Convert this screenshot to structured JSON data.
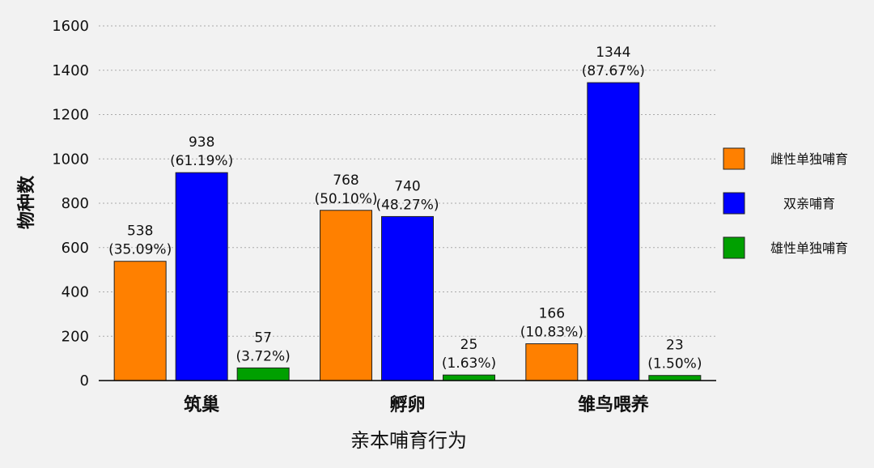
{
  "chart_data": {
    "type": "bar",
    "title": "",
    "xlabel": "亲本哺育行为",
    "ylabel": "物种数",
    "ylim": [
      0,
      1600
    ],
    "yticks": [
      0,
      200,
      400,
      600,
      800,
      1000,
      1200,
      1400,
      1600
    ],
    "grid": "horizontal-dotted",
    "legend_position": "right",
    "categories": [
      "筑巢",
      "孵卵",
      "雏鸟喂养"
    ],
    "series": [
      {
        "name": "雌性单独哺育",
        "color": "#ff8000",
        "values": [
          538,
          768,
          166
        ],
        "labels": [
          "(35.09%)",
          "(50.10%)",
          "(10.83%)"
        ]
      },
      {
        "name": "双亲哺育",
        "color": "#0000ff",
        "values": [
          938,
          740,
          1344
        ],
        "labels": [
          "(61.19%)",
          "(48.27%)",
          "(87.67%)"
        ]
      },
      {
        "name": "雄性单独哺育",
        "color": "#00a000",
        "values": [
          57,
          25,
          23
        ],
        "labels": [
          "(3.72%)",
          "(1.63%)",
          "(1.50%)"
        ]
      }
    ]
  }
}
